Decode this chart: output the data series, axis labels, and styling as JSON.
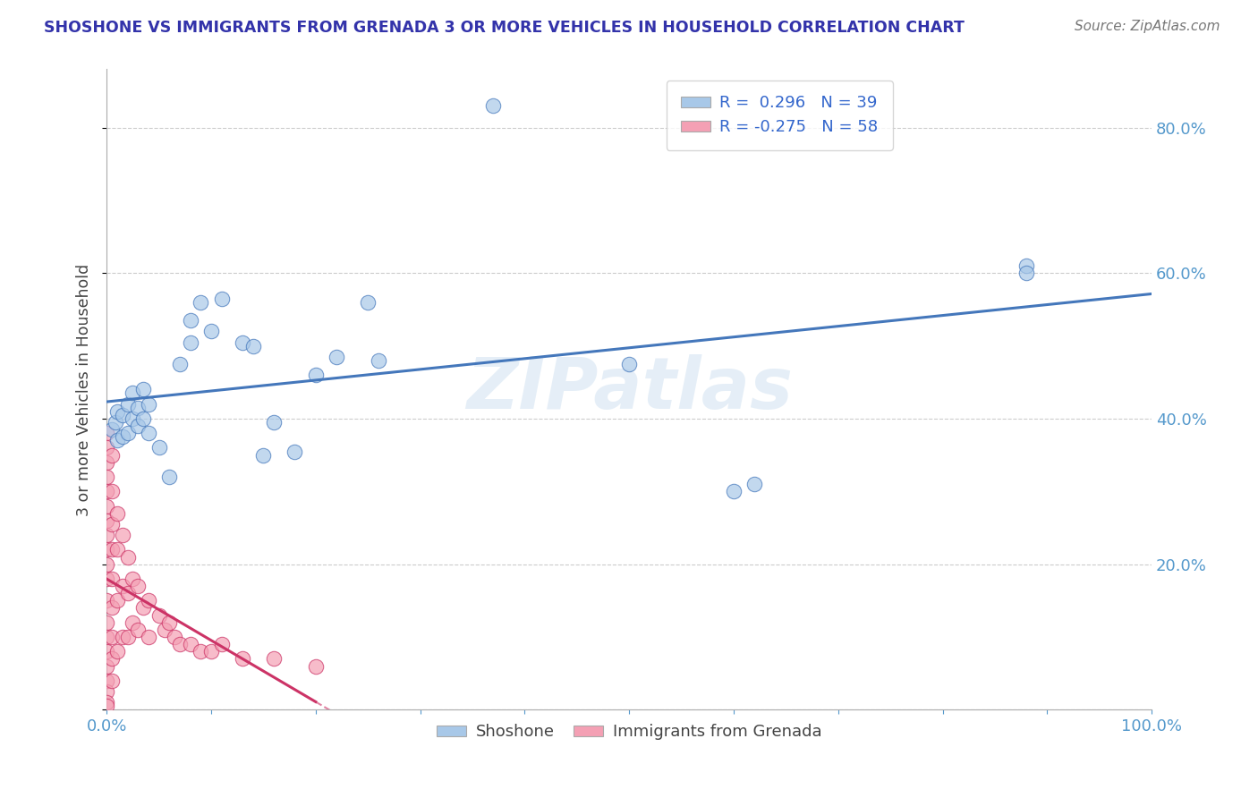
{
  "title": "SHOSHONE VS IMMIGRANTS FROM GRENADA 3 OR MORE VEHICLES IN HOUSEHOLD CORRELATION CHART",
  "source": "Source: ZipAtlas.com",
  "ylabel": "3 or more Vehicles in Household",
  "xlim": [
    0.0,
    1.0
  ],
  "ylim": [
    0.0,
    0.88
  ],
  "r_shoshone": 0.296,
  "n_shoshone": 39,
  "r_grenada": -0.275,
  "n_grenada": 58,
  "shoshone_color": "#a8c8e8",
  "grenada_color": "#f4a0b4",
  "shoshone_line_color": "#4477bb",
  "grenada_line_color": "#cc3366",
  "watermark": "ZIPatlas",
  "shoshone_x": [
    0.005,
    0.008,
    0.01,
    0.01,
    0.015,
    0.015,
    0.02,
    0.02,
    0.025,
    0.025,
    0.03,
    0.03,
    0.035,
    0.035,
    0.04,
    0.04,
    0.05,
    0.06,
    0.07,
    0.08,
    0.08,
    0.09,
    0.1,
    0.11,
    0.13,
    0.14,
    0.15,
    0.16,
    0.18,
    0.2,
    0.22,
    0.25,
    0.26,
    0.37,
    0.5,
    0.6,
    0.62,
    0.88,
    0.88
  ],
  "shoshone_y": [
    0.385,
    0.395,
    0.37,
    0.41,
    0.375,
    0.405,
    0.38,
    0.42,
    0.4,
    0.435,
    0.39,
    0.415,
    0.4,
    0.44,
    0.38,
    0.42,
    0.36,
    0.32,
    0.475,
    0.535,
    0.505,
    0.56,
    0.52,
    0.565,
    0.505,
    0.5,
    0.35,
    0.395,
    0.355,
    0.46,
    0.485,
    0.56,
    0.48,
    0.83,
    0.475,
    0.3,
    0.31,
    0.61,
    0.6
  ],
  "grenada_x": [
    0.0,
    0.0,
    0.0,
    0.0,
    0.0,
    0.0,
    0.0,
    0.0,
    0.0,
    0.0,
    0.0,
    0.0,
    0.0,
    0.0,
    0.0,
    0.0,
    0.0,
    0.0,
    0.0,
    0.0,
    0.005,
    0.005,
    0.005,
    0.005,
    0.005,
    0.005,
    0.005,
    0.005,
    0.005,
    0.01,
    0.01,
    0.01,
    0.01,
    0.015,
    0.015,
    0.015,
    0.02,
    0.02,
    0.02,
    0.025,
    0.025,
    0.03,
    0.03,
    0.035,
    0.04,
    0.04,
    0.05,
    0.055,
    0.06,
    0.065,
    0.07,
    0.08,
    0.09,
    0.1,
    0.11,
    0.13,
    0.16,
    0.2
  ],
  "grenada_y": [
    0.38,
    0.36,
    0.34,
    0.32,
    0.3,
    0.28,
    0.26,
    0.24,
    0.22,
    0.2,
    0.18,
    0.15,
    0.12,
    0.1,
    0.08,
    0.06,
    0.04,
    0.025,
    0.01,
    0.005,
    0.35,
    0.3,
    0.255,
    0.22,
    0.18,
    0.14,
    0.1,
    0.07,
    0.04,
    0.27,
    0.22,
    0.15,
    0.08,
    0.24,
    0.17,
    0.1,
    0.21,
    0.16,
    0.1,
    0.18,
    0.12,
    0.17,
    0.11,
    0.14,
    0.15,
    0.1,
    0.13,
    0.11,
    0.12,
    0.1,
    0.09,
    0.09,
    0.08,
    0.08,
    0.09,
    0.07,
    0.07,
    0.06
  ]
}
